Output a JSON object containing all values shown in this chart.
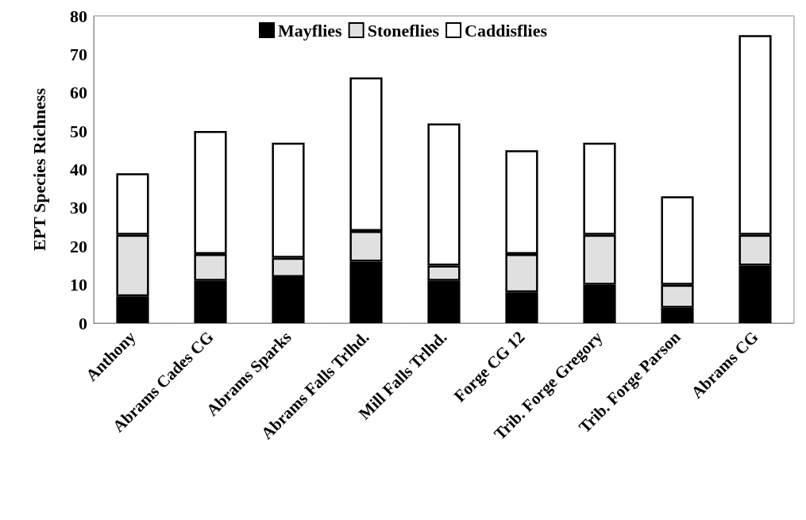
{
  "chart_data": {
    "type": "bar",
    "stacked": true,
    "ylabel": "EPT Species Richness",
    "categories": [
      "Anthony",
      "Abrams Cades CG",
      "Abrams Sparks",
      "Abrams Falls Trlhd.",
      "Mill Falls Trlhd.",
      "Forge CG 12",
      "Trib. Forge Gregory",
      "Trib. Forge Parson",
      "Abrams CG"
    ],
    "series": [
      {
        "name": "Mayflies",
        "color": "#000000",
        "values": [
          7,
          11,
          12,
          16,
          11,
          8,
          10,
          4,
          15
        ]
      },
      {
        "name": "Stoneflies",
        "color": "#e0e0e0",
        "values": [
          16,
          7,
          5,
          8,
          4,
          10,
          13,
          6,
          8
        ]
      },
      {
        "name": "Caddisflies",
        "color": "#ffffff",
        "values": [
          16,
          32,
          30,
          40,
          37,
          27,
          24,
          23,
          52
        ]
      }
    ],
    "ylim": [
      0,
      80
    ],
    "yticks": [
      0,
      10,
      20,
      30,
      40,
      50,
      60,
      70,
      80
    ],
    "grid": false,
    "legend": "top"
  }
}
